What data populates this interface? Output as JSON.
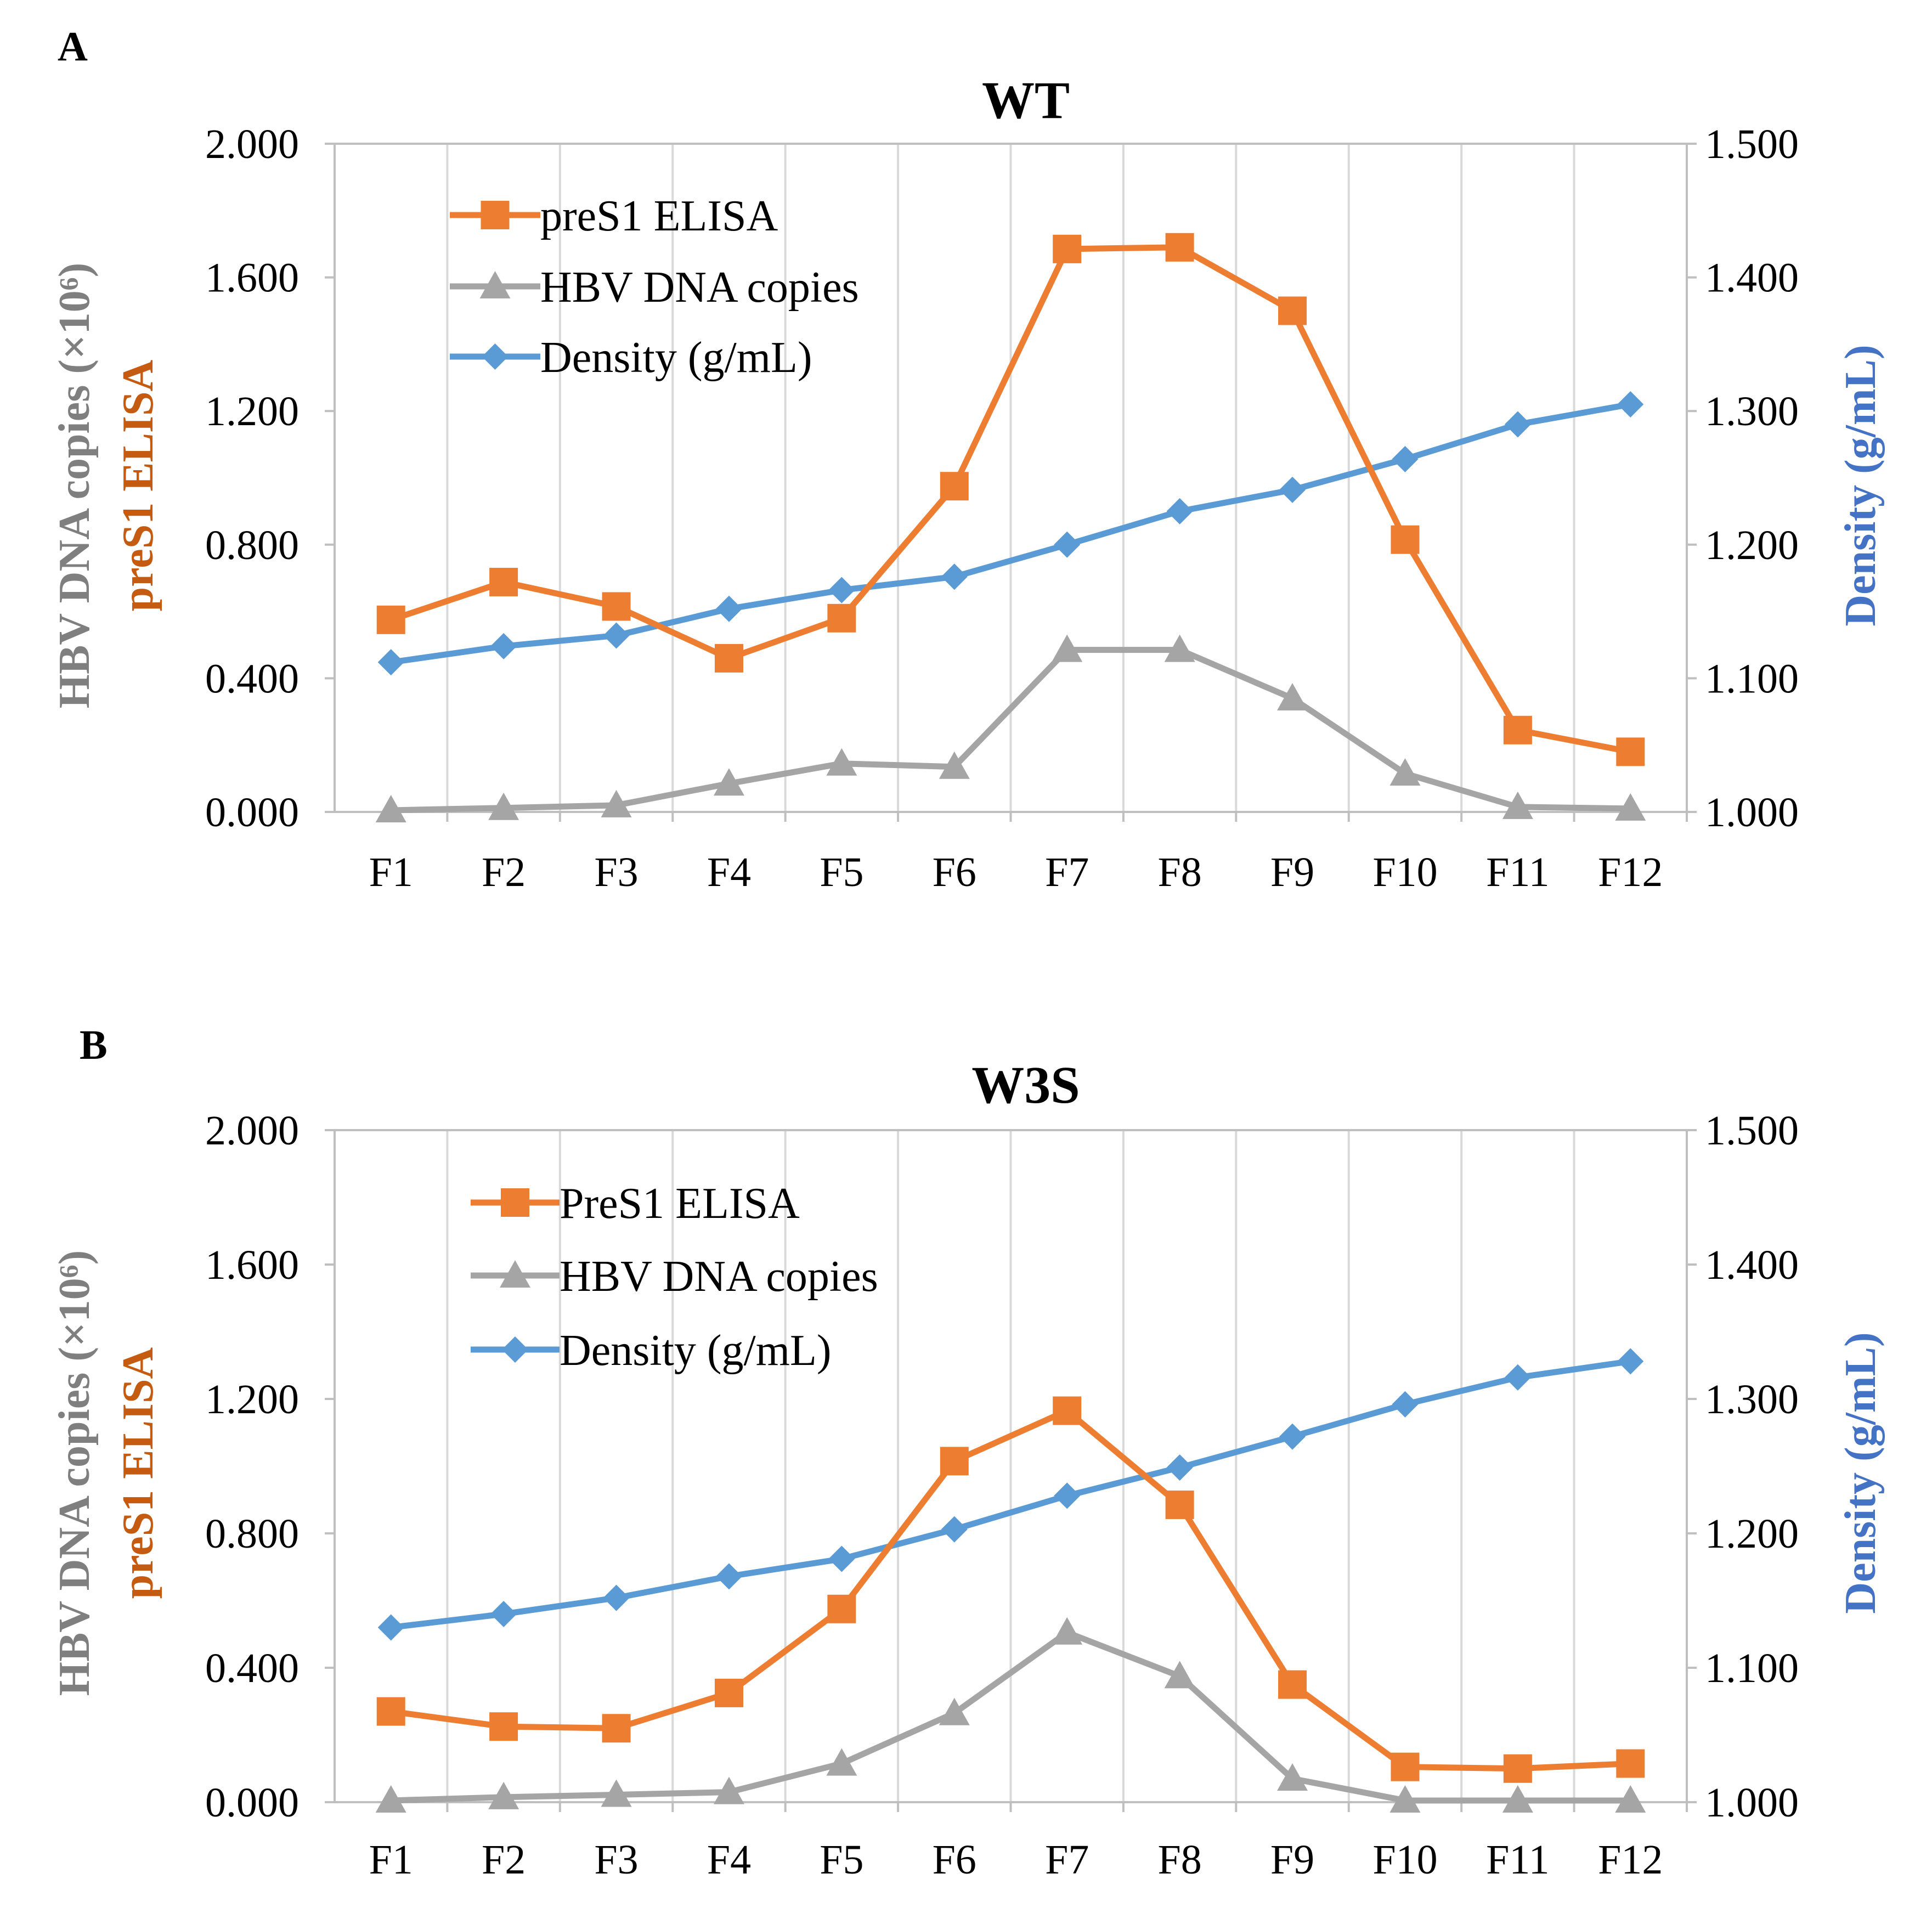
{
  "chart_data": [
    {
      "type": "line",
      "panel_label": "A",
      "title": "WT",
      "categories": [
        "F1",
        "F2",
        "F3",
        "F4",
        "F5",
        "F6",
        "F7",
        "F8",
        "F9",
        "F10",
        "F11",
        "F12"
      ],
      "y_left": {
        "label_gray": "HBV DNA copies (×10⁶)",
        "label_orange": "preS1 ELISA",
        "range": [
          0,
          2
        ],
        "ticks": [
          "0.000",
          "0.400",
          "0.800",
          "1.200",
          "1.600",
          "2.000"
        ]
      },
      "y_right": {
        "label": "Density (g/mL)",
        "range": [
          1.0,
          1.5
        ],
        "ticks": [
          "1.000",
          "1.100",
          "1.200",
          "1.300",
          "1.400",
          "1.500"
        ]
      },
      "series": [
        {
          "name": "preS1 ELISA",
          "axis": "left",
          "marker": "square",
          "color": "#ED7D31",
          "values": [
            0.575,
            0.688,
            0.615,
            0.46,
            0.58,
            0.975,
            1.685,
            1.69,
            1.5,
            0.815,
            0.245,
            0.18
          ]
        },
        {
          "name": "HBV DNA copies",
          "axis": "left",
          "marker": "triangle",
          "color": "#A5A5A5",
          "values": [
            0.005,
            0.012,
            0.02,
            0.085,
            0.145,
            0.135,
            0.485,
            0.485,
            0.34,
            0.115,
            0.015,
            0.01
          ]
        },
        {
          "name": "Density (g/mL)",
          "axis": "right",
          "marker": "diamond",
          "color": "#5B9BD5",
          "values": [
            1.112,
            1.124,
            1.132,
            1.152,
            1.166,
            1.176,
            1.2,
            1.225,
            1.241,
            1.264,
            1.29,
            1.305
          ]
        }
      ]
    },
    {
      "type": "line",
      "panel_label": "B",
      "title": "W3S",
      "categories": [
        "F1",
        "F2",
        "F3",
        "F4",
        "F5",
        "F6",
        "F7",
        "F8",
        "F9",
        "F10",
        "F11",
        "F12"
      ],
      "y_left": {
        "label_gray": "HBV DNA copies (×10⁶)",
        "label_orange": "preS1 ELISA",
        "range": [
          0,
          2
        ],
        "ticks": [
          "0.000",
          "0.400",
          "0.800",
          "1.200",
          "1.600",
          "2.000"
        ]
      },
      "y_right": {
        "label": "Density (g/mL)",
        "range": [
          1.0,
          1.5
        ],
        "ticks": [
          "1.000",
          "1.100",
          "1.200",
          "1.300",
          "1.400",
          "1.500"
        ]
      },
      "series": [
        {
          "name": "PreS1 ELISA",
          "axis": "left",
          "marker": "square",
          "color": "#ED7D31",
          "values": [
            0.27,
            0.225,
            0.22,
            0.325,
            0.575,
            1.015,
            1.165,
            0.885,
            0.35,
            0.105,
            0.1,
            0.115
          ]
        },
        {
          "name": "HBV DNA copies",
          "axis": "left",
          "marker": "triangle",
          "color": "#A5A5A5",
          "values": [
            0.005,
            0.015,
            0.022,
            0.03,
            0.115,
            0.265,
            0.505,
            0.375,
            0.07,
            0.005,
            0.005,
            0.005
          ]
        },
        {
          "name": "Density (g/mL)",
          "axis": "right",
          "marker": "diamond",
          "color": "#5B9BD5",
          "values": [
            1.13,
            1.14,
            1.152,
            1.168,
            1.181,
            1.203,
            1.228,
            1.249,
            1.272,
            1.296,
            1.316,
            1.328
          ]
        }
      ]
    }
  ]
}
